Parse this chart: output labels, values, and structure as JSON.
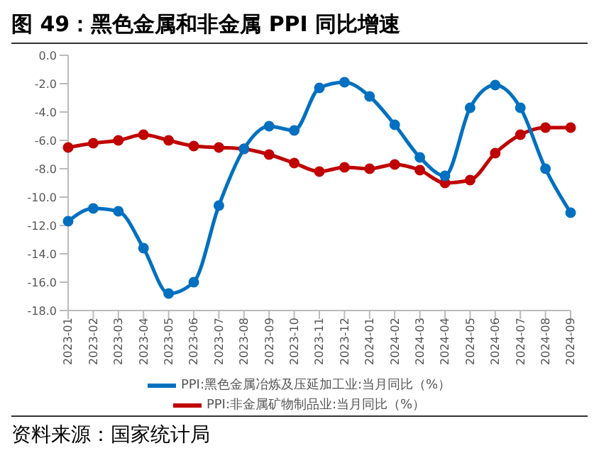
{
  "chart_data": {
    "type": "line",
    "title": "图 49：黑色金属和非金属 PPI 同比增速",
    "annotations": [
      "资料来源：国家统计局"
    ],
    "categories": [
      "2023-01",
      "2023-02",
      "2023-03",
      "2023-04",
      "2023-05",
      "2023-06",
      "2023-07",
      "2023-08",
      "2023-09",
      "2023-10",
      "2023-11",
      "2023-12",
      "2024-01",
      "2024-02",
      "2024-03",
      "2024-04",
      "2024-05",
      "2024-06",
      "2024-07",
      "2024-08",
      "2024-09"
    ],
    "series": [
      {
        "name": "PPI:黑色金属冶炼及压延加工业:当月同比（%）",
        "color": "#0070c0",
        "values": [
          -11.7,
          -10.8,
          -11.0,
          -13.6,
          -16.8,
          -16.0,
          -10.6,
          -6.6,
          -5.0,
          -5.3,
          -2.3,
          -1.9,
          -2.9,
          -4.9,
          -7.2,
          -8.5,
          -3.7,
          -2.1,
          -3.7,
          -8.0,
          -11.1
        ]
      },
      {
        "name": "PPI:非金属矿物制品业:当月同比（%）",
        "color": "#c00000",
        "values": [
          -6.5,
          -6.2,
          -6.0,
          -5.6,
          -6.0,
          -6.4,
          -6.5,
          -6.6,
          -7.0,
          -7.6,
          -8.2,
          -7.9,
          -8.0,
          -7.7,
          -8.1,
          -9.0,
          -8.8,
          -6.9,
          -5.6,
          -5.1,
          -5.1
        ]
      }
    ],
    "ylim": [
      -18,
      0
    ],
    "yticks": [
      {
        "value": 0,
        "label": "0.0"
      },
      {
        "value": -2,
        "label": "-2.0"
      },
      {
        "value": -4,
        "label": "-4.0"
      },
      {
        "value": -6,
        "label": "-6.0"
      },
      {
        "value": -8,
        "label": "-8.0"
      },
      {
        "value": -10,
        "label": "-10.0"
      },
      {
        "value": -12,
        "label": "-12.0"
      },
      {
        "value": -14,
        "label": "-14.0"
      },
      {
        "value": -16,
        "label": "-16.0"
      },
      {
        "value": -18,
        "label": "-18.0"
      }
    ],
    "legend": "bottom",
    "marker": "circle",
    "line_style": "solid",
    "grid": false
  }
}
